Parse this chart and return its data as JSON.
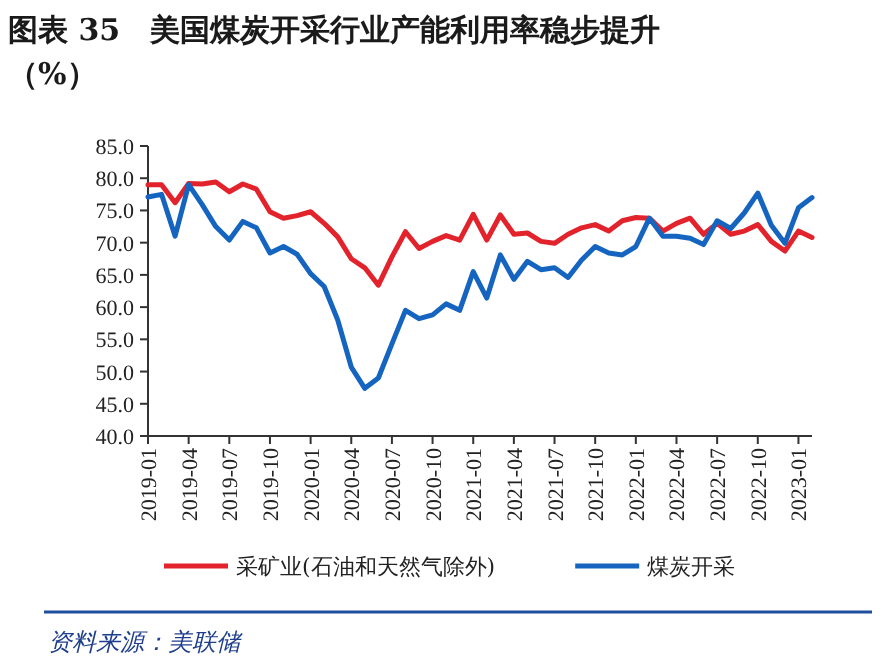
{
  "chart_data": {
    "type": "line",
    "title": "图表 35　美国煤炭开采行业产能利用率稳步提升（%）",
    "x": [
      "2019-01",
      "2019-02",
      "2019-03",
      "2019-04",
      "2019-05",
      "2019-06",
      "2019-07",
      "2019-08",
      "2019-09",
      "2019-10",
      "2019-11",
      "2019-12",
      "2020-01",
      "2020-02",
      "2020-03",
      "2020-04",
      "2020-05",
      "2020-06",
      "2020-07",
      "2020-08",
      "2020-09",
      "2020-10",
      "2020-11",
      "2020-12",
      "2021-01",
      "2021-02",
      "2021-03",
      "2021-04",
      "2021-05",
      "2021-06",
      "2021-07",
      "2021-08",
      "2021-09",
      "2021-10",
      "2021-11",
      "2021-12",
      "2022-01",
      "2022-02",
      "2022-03",
      "2022-04",
      "2022-05",
      "2022-06",
      "2022-07",
      "2022-08",
      "2022-09",
      "2022-10",
      "2022-11",
      "2022-12",
      "2023-01",
      "2023-02"
    ],
    "series": [
      {
        "name": "采矿业(石油和天然气除外)",
        "color": "#e3232c",
        "values": [
          79.0,
          79.0,
          76.2,
          79.2,
          79.1,
          79.4,
          77.9,
          79.1,
          78.3,
          74.8,
          73.8,
          74.2,
          74.8,
          73.0,
          70.9,
          67.5,
          66.1,
          63.4,
          67.8,
          71.7,
          69.1,
          70.2,
          71.1,
          70.4,
          74.4,
          70.4,
          74.3,
          71.3,
          71.5,
          70.2,
          69.9,
          71.3,
          72.3,
          72.8,
          71.8,
          73.4,
          73.9,
          73.8,
          71.8,
          73.0,
          73.8,
          71.3,
          73.0,
          71.3,
          71.8,
          72.8,
          70.2,
          68.7,
          71.8,
          70.8
        ]
      },
      {
        "name": "煤炭开采",
        "color": "#1565c0",
        "values": [
          77.1,
          77.5,
          71.0,
          79.0,
          75.9,
          72.5,
          70.4,
          73.3,
          72.3,
          68.4,
          69.4,
          68.2,
          65.2,
          63.2,
          58.0,
          50.7,
          47.4,
          49.0,
          54.3,
          59.5,
          58.2,
          58.8,
          60.5,
          59.5,
          65.5,
          61.4,
          68.1,
          64.3,
          67.1,
          65.8,
          66.1,
          64.6,
          67.3,
          69.4,
          68.4,
          68.1,
          69.4,
          73.8,
          71.0,
          71.0,
          70.7,
          69.7,
          73.4,
          72.2,
          74.6,
          77.7,
          72.7,
          69.9,
          75.4,
          77.0
        ]
      }
    ],
    "xlim": [
      "2019-01",
      "2023-02"
    ],
    "xticks": [
      "2019-01",
      "2019-04",
      "2019-07",
      "2019-10",
      "2020-01",
      "2020-04",
      "2020-07",
      "2020-10",
      "2021-01",
      "2021-04",
      "2021-07",
      "2021-10",
      "2022-01",
      "2022-04",
      "2022-07",
      "2022-10",
      "2023-01"
    ],
    "ylim": [
      40,
      85
    ],
    "yticks": [
      {
        "value": 40,
        "label": "40.0"
      },
      {
        "value": 45,
        "label": "45.0"
      },
      {
        "value": 50,
        "label": "50.0"
      },
      {
        "value": 55,
        "label": "55.0"
      },
      {
        "value": 60,
        "label": "60.0"
      },
      {
        "value": 65,
        "label": "65.0"
      },
      {
        "value": 70,
        "label": "70.0"
      },
      {
        "value": 75,
        "label": "75.0"
      },
      {
        "value": 80,
        "label": "80.0"
      },
      {
        "value": 85,
        "label": "85.0"
      }
    ],
    "grid": false,
    "legend": "bottom",
    "marker": "none",
    "line_style": "solid",
    "annotations": [
      "资料来源：美联储"
    ]
  }
}
